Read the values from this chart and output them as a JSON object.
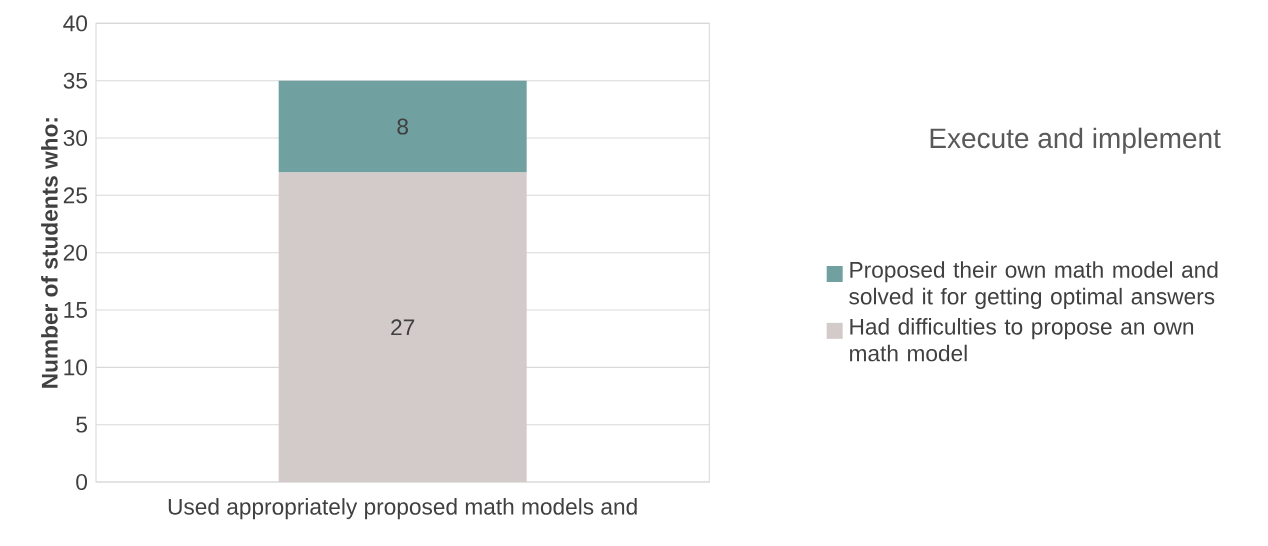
{
  "chart_data": {
    "type": "bar",
    "stacked": true,
    "title": "Execute and implement",
    "ylabel": "Number of students who:",
    "categories": [
      "Used appropriately proposed math models and"
    ],
    "series": [
      {
        "name": "Had difficulties to propose an own math model",
        "color": "#d3cbca",
        "values": [
          27
        ]
      },
      {
        "name": "Proposed their own math model and solved it for getting optimal answers",
        "color": "#71a0a1",
        "values": [
          8
        ]
      }
    ],
    "ylim": [
      0,
      40
    ],
    "yticks": [
      0,
      5,
      10,
      15,
      20,
      25,
      30,
      35,
      40
    ],
    "grid": "y",
    "legend": "right",
    "data_labels": true
  }
}
